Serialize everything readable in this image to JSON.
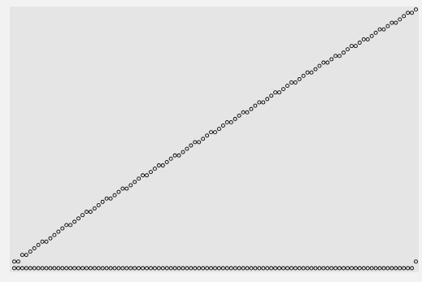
{
  "chart_data": {
    "type": "scatter",
    "title": "",
    "xlabel": "",
    "ylabel": "",
    "grid": false,
    "legend": "none",
    "colors": {
      "figure_background": "#f2f2f2",
      "plot_background": "#e5e5e5",
      "marker_stroke": "#000000"
    },
    "xlim": [
      0,
      100
    ],
    "ylim": [
      0,
      100
    ],
    "series": [
      {
        "x": [
          0,
          1,
          2,
          3,
          4,
          5,
          6,
          7,
          8,
          9,
          10,
          11,
          12,
          13,
          14,
          15,
          16,
          17,
          18,
          19,
          20,
          21,
          22,
          23,
          24,
          25,
          26,
          27,
          28,
          29,
          30,
          31,
          32,
          33,
          34,
          35,
          36,
          37,
          38,
          39,
          40,
          41,
          42,
          43,
          44,
          45,
          46,
          47,
          48,
          49,
          50,
          51,
          52,
          53,
          54,
          55,
          56,
          57,
          58,
          59,
          60,
          61,
          62,
          63,
          64,
          65,
          66,
          67,
          68,
          69,
          70,
          71,
          72,
          73,
          74,
          75,
          76,
          77,
          78,
          79,
          80,
          81,
          82,
          83,
          84,
          85,
          86,
          87,
          88,
          89,
          90,
          91,
          92,
          93,
          94,
          95,
          96,
          97,
          98,
          99,
          100
        ],
        "y": [
          2,
          2,
          4,
          4,
          5,
          6,
          7,
          8,
          8,
          9,
          10,
          11,
          12,
          13,
          13,
          14,
          15,
          16,
          17,
          17,
          18,
          19,
          20,
          21,
          21,
          22,
          23,
          24,
          24,
          25,
          26,
          27,
          28,
          28,
          29,
          30,
          31,
          31,
          32,
          33,
          34,
          34,
          35,
          36,
          37,
          38,
          38,
          39,
          40,
          41,
          41,
          42,
          43,
          44,
          44,
          45,
          46,
          47,
          47,
          48,
          49,
          50,
          50,
          51,
          52,
          53,
          53,
          54,
          55,
          56,
          56,
          57,
          58,
          59,
          59,
          60,
          61,
          62,
          62,
          63,
          64,
          64,
          65,
          66,
          67,
          67,
          68,
          69,
          69,
          70,
          71,
          72,
          72,
          73,
          74,
          74,
          75,
          76,
          77,
          77,
          78
        ]
      },
      {
        "x": [
          0,
          1,
          2,
          3,
          4,
          5,
          6,
          7,
          8,
          9,
          10,
          11,
          12,
          13,
          14,
          15,
          16,
          17,
          18,
          19,
          20,
          21,
          22,
          23,
          24,
          25,
          26,
          27,
          28,
          29,
          30,
          31,
          32,
          33,
          34,
          35,
          36,
          37,
          38,
          39,
          40,
          41,
          42,
          43,
          44,
          45,
          46,
          47,
          48,
          49,
          50,
          51,
          52,
          53,
          54,
          55,
          56,
          57,
          58,
          59,
          60,
          61,
          62,
          63,
          64,
          65,
          66,
          67,
          68,
          69,
          70,
          71,
          72,
          73,
          74,
          75,
          76,
          77,
          78,
          79,
          80,
          81,
          82,
          83,
          84,
          85,
          86,
          87,
          88,
          89,
          90,
          91,
          92,
          93,
          94,
          95,
          96,
          97,
          98,
          99,
          100
        ],
        "y": [
          0,
          0,
          0,
          0,
          0,
          0,
          0,
          0,
          0,
          0,
          0,
          0,
          0,
          0,
          0,
          0,
          0,
          0,
          0,
          0,
          0,
          0,
          0,
          0,
          0,
          0,
          0,
          0,
          0,
          0,
          0,
          0,
          0,
          0,
          0,
          0,
          0,
          0,
          0,
          0,
          0,
          0,
          0,
          0,
          0,
          0,
          0,
          0,
          0,
          0,
          0,
          0,
          0,
          0,
          0,
          0,
          0,
          0,
          0,
          0,
          0,
          0,
          0,
          0,
          0,
          0,
          0,
          0,
          0,
          0,
          0,
          0,
          0,
          0,
          0,
          0,
          0,
          0,
          0,
          0,
          0,
          0,
          0,
          0,
          0,
          0,
          0,
          0,
          0,
          0,
          0,
          0,
          0,
          0,
          0,
          0,
          0,
          0,
          0,
          0,
          2
        ]
      }
    ]
  }
}
